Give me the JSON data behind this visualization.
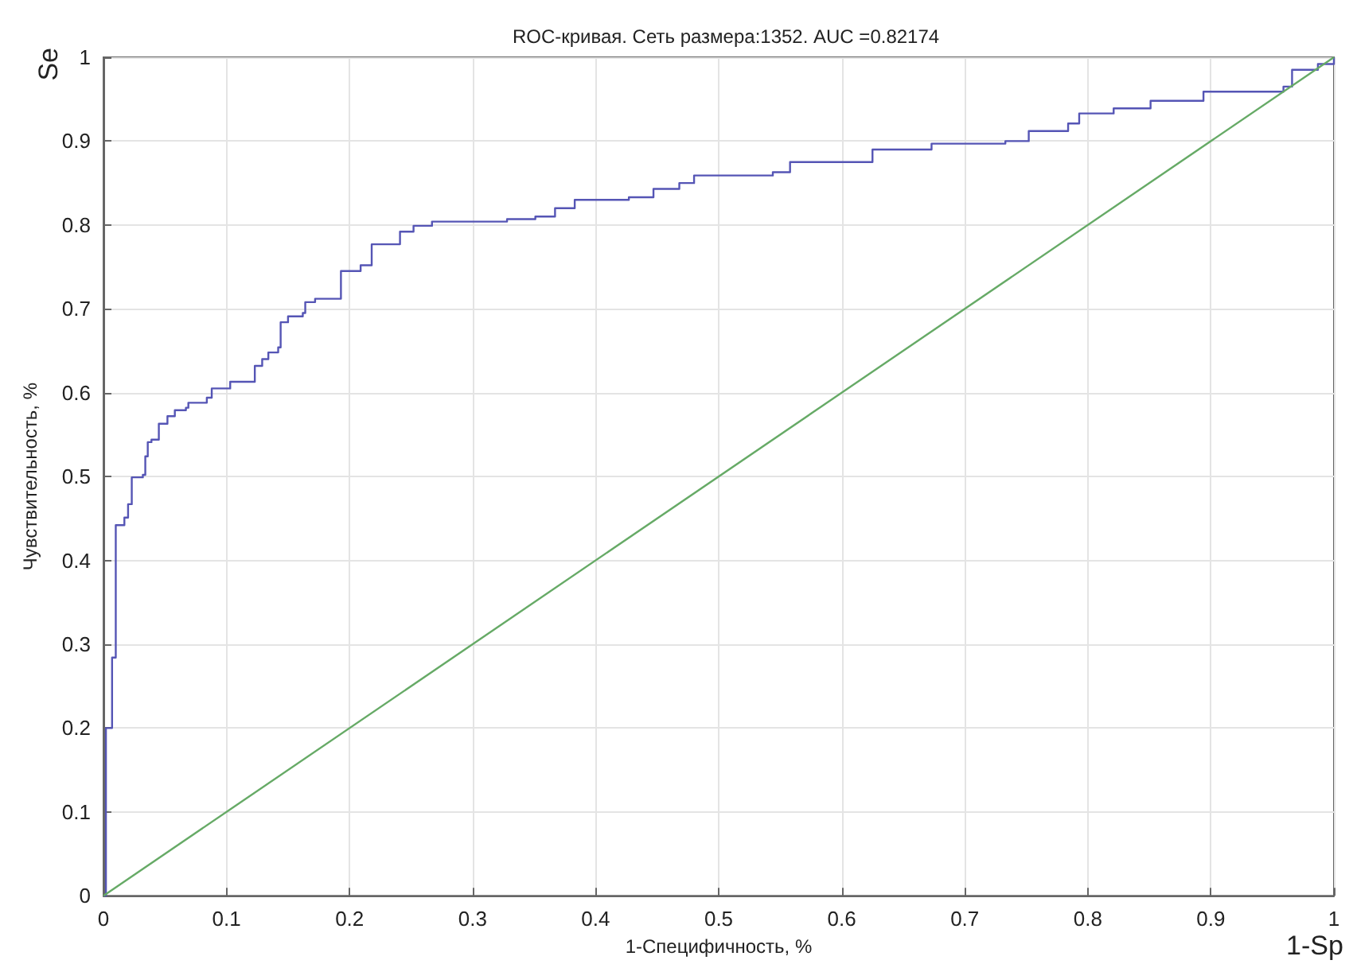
{
  "chart_data": {
    "type": "step",
    "title": "ROC-кривая. Сеть размера:1352. AUC =0.82174",
    "xlabel": "1-Специфичность, %",
    "ylabel": "Чувствительность, %",
    "annotations": [
      "Se",
      "1-Sp"
    ],
    "xlim": [
      0,
      1
    ],
    "ylim": [
      0,
      1
    ],
    "xticks": [
      0,
      0.1,
      0.2,
      0.3,
      0.4,
      0.5,
      0.6,
      0.7,
      0.8,
      0.9,
      1
    ],
    "yticks": [
      0,
      0.1,
      0.2,
      0.3,
      0.4,
      0.5,
      0.6,
      0.7,
      0.8,
      0.9,
      1
    ],
    "grid": true,
    "series": [
      {
        "color": "#5555b5",
        "x": [
          0,
          0.002,
          0.002,
          0.007,
          0.01,
          0.015,
          0.017,
          0.02,
          0.023,
          0.032,
          0.034,
          0.036,
          0.039,
          0.045,
          0.052,
          0.058,
          0.067,
          0.069,
          0.084,
          0.088,
          0.103,
          0.123,
          0.129,
          0.134,
          0.142,
          0.144,
          0.15,
          0.162,
          0.164,
          0.172,
          0.193,
          0.209,
          0.218,
          0.241,
          0.252,
          0.267,
          0.328,
          0.351,
          0.367,
          0.383,
          0.427,
          0.447,
          0.468,
          0.48,
          0.544,
          0.558,
          0.625,
          0.673,
          0.733,
          0.752,
          0.784,
          0.793,
          0.821,
          0.851,
          0.894,
          0.959,
          0.966,
          0.987,
          1
        ],
        "values": [
          0,
          0.04,
          0.2,
          0.284,
          0.442,
          0.442,
          0.451,
          0.467,
          0.499,
          0.502,
          0.524,
          0.541,
          0.544,
          0.563,
          0.572,
          0.579,
          0.582,
          0.588,
          0.594,
          0.605,
          0.613,
          0.632,
          0.64,
          0.648,
          0.654,
          0.684,
          0.691,
          0.695,
          0.708,
          0.712,
          0.745,
          0.752,
          0.777,
          0.792,
          0.799,
          0.804,
          0.807,
          0.81,
          0.82,
          0.83,
          0.833,
          0.843,
          0.85,
          0.859,
          0.863,
          0.875,
          0.89,
          0.897,
          0.9,
          0.912,
          0.921,
          0.933,
          0.939,
          0.948,
          0.959,
          0.965,
          0.985,
          0.992,
          1
        ]
      },
      {
        "type": "line",
        "color": "#66aa66",
        "x": [
          0,
          1
        ],
        "values": [
          0,
          1
        ]
      }
    ]
  }
}
